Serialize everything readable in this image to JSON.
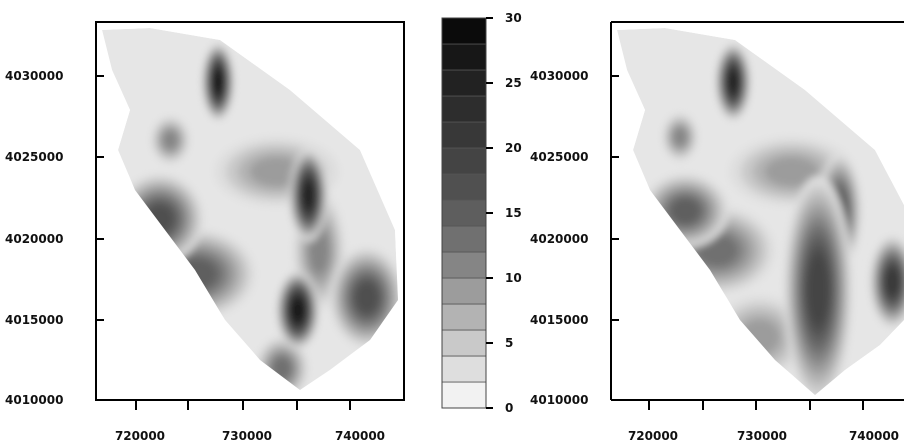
{
  "chart_data": [
    {
      "type": "heatmap",
      "panel": "left",
      "x_ticks": [
        "720000",
        "730000",
        "740000"
      ],
      "y_ticks": [
        "4010000",
        "4015000",
        "4020000",
        "4025000",
        "4030000"
      ],
      "xlim": [
        716000,
        745000
      ],
      "ylim": [
        4009500,
        4033500
      ],
      "hotspots": [
        {
          "x": 727500,
          "y": 4029700,
          "value": 26,
          "rx": 900,
          "ry": 1500
        },
        {
          "x": 736000,
          "y": 4022500,
          "value": 24,
          "rx": 1100,
          "ry": 1800
        },
        {
          "x": 735000,
          "y": 4015200,
          "value": 26,
          "rx": 1200,
          "ry": 1500
        },
        {
          "x": 722000,
          "y": 4021000,
          "value": 16,
          "rx": 2600,
          "ry": 1800
        },
        {
          "x": 725500,
          "y": 4017500,
          "value": 15,
          "rx": 3500,
          "ry": 1800
        },
        {
          "x": 741500,
          "y": 4016000,
          "value": 17,
          "rx": 2200,
          "ry": 2000
        },
        {
          "x": 733000,
          "y": 4024000,
          "value": 9,
          "rx": 4000,
          "ry": 1500
        },
        {
          "x": 737000,
          "y": 4019000,
          "value": 11,
          "rx": 1600,
          "ry": 2500
        },
        {
          "x": 723000,
          "y": 4026000,
          "value": 10,
          "rx": 1200,
          "ry": 1000
        },
        {
          "x": 733500,
          "y": 4011500,
          "value": 13,
          "rx": 1600,
          "ry": 1300
        }
      ]
    },
    {
      "type": "heatmap",
      "panel": "right",
      "x_ticks": [
        "720000",
        "730000",
        "740000"
      ],
      "y_ticks": [
        "4010000",
        "4015000",
        "4020000",
        "4025000",
        "4030000"
      ],
      "xlim": [
        716000,
        745000
      ],
      "ylim": [
        4009500,
        4033500
      ],
      "hotspots": [
        {
          "x": 727500,
          "y": 4029700,
          "value": 24,
          "rx": 1000,
          "ry": 1500
        },
        {
          "x": 735500,
          "y": 4016500,
          "value": 19,
          "rx": 2000,
          "ry": 4500
        },
        {
          "x": 737500,
          "y": 4021500,
          "value": 16,
          "rx": 1300,
          "ry": 2300
        },
        {
          "x": 723000,
          "y": 4021500,
          "value": 15,
          "rx": 2600,
          "ry": 1500
        },
        {
          "x": 726000,
          "y": 4019000,
          "value": 13,
          "rx": 3500,
          "ry": 1800
        },
        {
          "x": 742500,
          "y": 4017000,
          "value": 20,
          "rx": 1300,
          "ry": 1800
        },
        {
          "x": 733000,
          "y": 4024000,
          "value": 9,
          "rx": 4000,
          "ry": 1500
        },
        {
          "x": 722500,
          "y": 4026200,
          "value": 10,
          "rx": 1100,
          "ry": 1000
        },
        {
          "x": 730000,
          "y": 4013500,
          "value": 8,
          "rx": 3000,
          "ry": 1800
        }
      ]
    }
  ],
  "colorbar": {
    "min": 0,
    "max": 30,
    "step": 2,
    "tick_labels": [
      "0",
      "5",
      "10",
      "15",
      "20",
      "25",
      "30"
    ],
    "colors": [
      "#f2f2f2",
      "#dedede",
      "#c9c9c9",
      "#b3b3b3",
      "#9c9c9c",
      "#858585",
      "#707070",
      "#5e5e5e",
      "#505050",
      "#444444",
      "#383838",
      "#2d2d2d",
      "#222222",
      "#171717",
      "#0b0b0b"
    ]
  }
}
